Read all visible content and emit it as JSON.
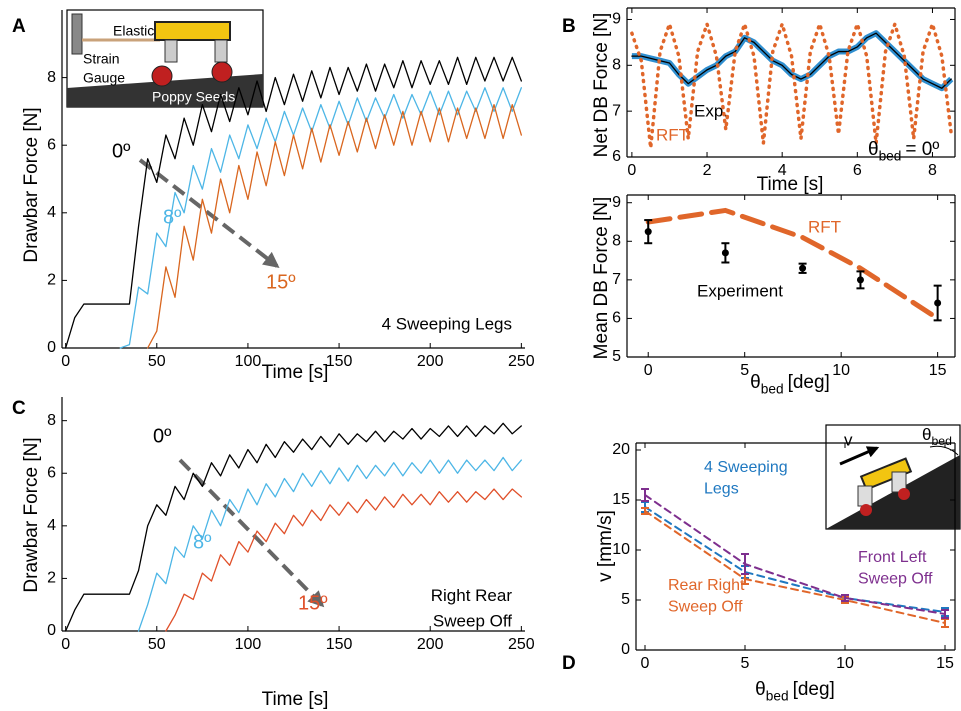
{
  "chart_data": [
    {
      "panel": "A",
      "type": "line",
      "x_label": "Time [s]",
      "y_label": "Drawbar Force [N]",
      "xlim": [
        -2,
        252
      ],
      "ylim": [
        0,
        10
      ],
      "xticks": [
        0,
        50,
        100,
        150,
        200,
        250
      ],
      "yticks": [
        0,
        2,
        4,
        6,
        8
      ],
      "x": [
        0,
        5,
        10,
        15,
        20,
        25,
        30,
        35,
        40,
        45,
        50,
        55,
        60,
        65,
        70,
        75,
        80,
        85,
        90,
        95,
        100,
        105,
        110,
        115,
        120,
        125,
        130,
        135,
        140,
        145,
        150,
        155,
        160,
        165,
        170,
        175,
        180,
        185,
        190,
        195,
        200,
        205,
        210,
        215,
        220,
        225,
        230,
        235,
        240,
        245,
        250
      ],
      "series": [
        {
          "name": "0º",
          "color": "#000000",
          "values": [
            0,
            0.9,
            1.3,
            1.3,
            1.3,
            1.3,
            1.3,
            1.3,
            3.6,
            5.6,
            4.9,
            6.3,
            5.6,
            6.8,
            6.0,
            7.2,
            6.4,
            7.5,
            6.7,
            7.7,
            6.9,
            7.9,
            7.0,
            8.0,
            7.2,
            8.1,
            7.3,
            8.2,
            7.4,
            8.3,
            7.5,
            8.3,
            7.6,
            8.4,
            7.6,
            8.4,
            7.7,
            8.5,
            7.7,
            8.5,
            7.8,
            8.5,
            7.8,
            8.6,
            7.8,
            8.6,
            7.9,
            8.6,
            7.9,
            8.6,
            7.9
          ]
        },
        {
          "name": "8º",
          "color": "#4db6e6",
          "values": [
            null,
            null,
            null,
            null,
            null,
            null,
            0,
            0.1,
            1.8,
            1.6,
            3.4,
            3.0,
            4.6,
            4.0,
            5.4,
            4.7,
            5.9,
            5.2,
            6.3,
            5.6,
            6.6,
            5.9,
            6.8,
            6.1,
            7.0,
            6.3,
            7.1,
            6.4,
            7.2,
            6.5,
            7.3,
            6.6,
            7.4,
            6.7,
            7.4,
            6.8,
            7.5,
            6.8,
            7.5,
            6.9,
            7.6,
            6.9,
            7.6,
            6.9,
            7.6,
            7.0,
            7.7,
            7.0,
            7.7,
            7.0,
            7.7
          ]
        },
        {
          "name": "15º",
          "color": "#d9661f",
          "values": [
            null,
            null,
            null,
            null,
            null,
            null,
            null,
            null,
            null,
            0,
            0.5,
            2.4,
            1.5,
            3.6,
            2.6,
            4.4,
            3.4,
            5.0,
            4.0,
            5.4,
            4.4,
            5.8,
            4.8,
            6.1,
            5.1,
            6.3,
            5.3,
            6.5,
            5.5,
            6.6,
            5.7,
            6.7,
            5.8,
            6.8,
            5.9,
            6.9,
            6.0,
            7.0,
            6.0,
            7.0,
            6.1,
            7.1,
            6.1,
            7.1,
            6.2,
            7.1,
            6.2,
            7.2,
            6.2,
            7.2,
            6.3
          ]
        }
      ],
      "annotations": [
        "4 Sweeping Legs"
      ],
      "inset_labels": [
        "Elastic",
        "Strain",
        "Gauge",
        "Poppy Seeds"
      ]
    },
    {
      "panel": "B",
      "type": "line",
      "x_label": "Time [s]",
      "y_label": "Net DB Force [N]",
      "box": true,
      "xlim": [
        -0.13,
        8.6
      ],
      "ylim": [
        6,
        9.25
      ],
      "xticks": [
        0,
        2,
        4,
        6,
        8
      ],
      "yticks": [
        6,
        7,
        8,
        9
      ],
      "x": [
        0,
        0.25,
        0.5,
        0.75,
        1,
        1.25,
        1.5,
        1.75,
        2,
        2.25,
        2.5,
        2.75,
        3,
        3.25,
        3.5,
        3.75,
        4,
        4.25,
        4.5,
        4.75,
        5,
        5.25,
        5.5,
        5.75,
        6,
        6.25,
        6.5,
        6.75,
        7,
        7.25,
        7.5,
        7.75,
        8,
        8.25,
        8.5
      ],
      "series": [
        {
          "name": "Exp.",
          "color": "#000000",
          "outline": "#2f8fd0",
          "values": [
            8.2,
            8.2,
            8.15,
            8.1,
            8.05,
            7.8,
            7.6,
            7.75,
            7.9,
            8.0,
            8.2,
            8.3,
            8.6,
            8.5,
            8.3,
            8.1,
            8.0,
            7.8,
            7.7,
            7.8,
            8.0,
            8.2,
            8.3,
            8.3,
            8.4,
            8.6,
            8.7,
            8.5,
            8.3,
            8.1,
            7.9,
            7.7,
            7.6,
            7.5,
            7.7
          ]
        },
        {
          "name": "RFT",
          "color": "#e0662a",
          "style": "dotted",
          "values": [
            8.7,
            8.1,
            6.2,
            8.3,
            8.9,
            8.2,
            6.4,
            8.3,
            8.9,
            8.2,
            6.6,
            8.3,
            8.9,
            8.2,
            6.3,
            8.3,
            8.9,
            8.2,
            6.4,
            8.3,
            8.9,
            8.2,
            6.5,
            8.3,
            8.9,
            8.2,
            6.3,
            8.3,
            8.9,
            8.2,
            6.4,
            8.3,
            8.9,
            8.2,
            6.5
          ]
        }
      ],
      "annotations": [
        {
          "symbol": "θ",
          "subscript": "bed",
          "text": "= 0º"
        }
      ]
    },
    {
      "type": "errorbar",
      "x_label": {
        "symbol": "θ",
        "subscript": "bed",
        "text": "[deg]"
      },
      "y_label": "Mean DB Force [N]",
      "box": true,
      "xlim": [
        -1.1,
        15.9
      ],
      "ylim": [
        5,
        9.2
      ],
      "xticks": [
        0,
        5,
        10,
        15
      ],
      "yticks": [
        5,
        6,
        7,
        8,
        9
      ],
      "x": [
        0,
        4,
        8,
        11,
        15
      ],
      "series": [
        {
          "name": "RFT",
          "color": "#e0662a",
          "style": "dashed",
          "values": [
            8.5,
            8.8,
            8.1,
            7.3,
            6.0
          ]
        },
        {
          "name": "Experiment",
          "color": "#000000",
          "style": "none",
          "values": [
            8.25,
            7.7,
            7.3,
            7.0,
            6.4
          ],
          "errors": [
            0.3,
            0.25,
            0.12,
            0.22,
            0.45
          ]
        }
      ]
    },
    {
      "panel": "C",
      "type": "line",
      "x_label": "Time [s]",
      "y_label": "Drawbar Force [N]",
      "xlim": [
        -2,
        252
      ],
      "ylim": [
        0,
        8.9
      ],
      "xticks": [
        0,
        50,
        100,
        150,
        200,
        250
      ],
      "yticks": [
        0,
        2,
        4,
        6,
        8
      ],
      "x": [
        0,
        5,
        10,
        15,
        20,
        25,
        30,
        35,
        40,
        45,
        50,
        55,
        60,
        65,
        70,
        75,
        80,
        85,
        90,
        95,
        100,
        105,
        110,
        115,
        120,
        125,
        130,
        135,
        140,
        145,
        150,
        155,
        160,
        165,
        170,
        175,
        180,
        185,
        190,
        195,
        200,
        205,
        210,
        215,
        220,
        225,
        230,
        235,
        240,
        245,
        250
      ],
      "series": [
        {
          "name": "0º",
          "color": "#000000",
          "values": [
            0,
            0.8,
            1.4,
            1.4,
            1.4,
            1.4,
            1.4,
            1.4,
            2.3,
            4.0,
            4.8,
            4.4,
            5.5,
            5.0,
            6.0,
            5.5,
            6.4,
            5.9,
            6.7,
            6.2,
            6.9,
            6.4,
            7.1,
            6.6,
            7.2,
            6.8,
            7.3,
            6.9,
            7.4,
            7.0,
            7.5,
            7.1,
            7.5,
            7.2,
            7.6,
            7.2,
            7.6,
            7.3,
            7.7,
            7.3,
            7.7,
            7.4,
            7.8,
            7.4,
            7.8,
            7.4,
            7.8,
            7.5,
            7.9,
            7.5,
            7.8
          ]
        },
        {
          "name": "8º",
          "color": "#4db6e6",
          "values": [
            null,
            null,
            null,
            null,
            null,
            null,
            null,
            null,
            0,
            1.0,
            2.2,
            1.8,
            3.2,
            2.8,
            4.0,
            3.5,
            4.6,
            4.0,
            5.0,
            4.5,
            5.4,
            4.8,
            5.6,
            5.1,
            5.8,
            5.3,
            6.0,
            5.5,
            6.1,
            5.6,
            6.2,
            5.7,
            6.3,
            5.8,
            6.3,
            5.9,
            6.4,
            5.9,
            6.4,
            6.0,
            6.5,
            6.0,
            6.5,
            6.0,
            6.5,
            6.1,
            6.5,
            6.1,
            6.6,
            6.1,
            6.5
          ]
        },
        {
          "name": "15º",
          "color": "#e0502a",
          "values": [
            null,
            null,
            null,
            null,
            null,
            null,
            null,
            null,
            null,
            null,
            null,
            0,
            0.6,
            1.4,
            1.2,
            2.2,
            1.9,
            2.9,
            2.5,
            3.4,
            3.0,
            3.8,
            3.4,
            4.1,
            3.7,
            4.4,
            4.0,
            4.6,
            4.2,
            4.8,
            4.4,
            4.9,
            4.5,
            5.0,
            4.6,
            5.1,
            4.7,
            5.2,
            4.8,
            5.2,
            4.8,
            5.3,
            4.9,
            5.3,
            4.9,
            5.3,
            5.0,
            5.4,
            5.0,
            5.4,
            5.1
          ]
        }
      ],
      "annotations": [
        "Right Rear Sweep Off"
      ]
    },
    {
      "panel": "D",
      "type": "errorbar",
      "x_label": {
        "symbol": "θ",
        "subscript": "bed",
        "text": "[deg]"
      },
      "y_label": "v [mm/s]",
      "box": true,
      "xlim": [
        -0.45,
        15.5
      ],
      "ylim": [
        0,
        20.7
      ],
      "xticks": [
        0,
        5,
        10,
        15
      ],
      "yticks": [
        0,
        5,
        10,
        15,
        20
      ],
      "x": [
        0,
        5,
        10,
        15
      ],
      "series": [
        {
          "name": "4 Sweeping Legs",
          "color": "#1f78c0",
          "style": "dashed",
          "values": [
            14.3,
            7.8,
            5.2,
            3.8
          ],
          "errors": [
            0.5,
            0.6,
            0.3,
            0.4
          ]
        },
        {
          "name": "Rear Right Sweep Off",
          "color": "#e0662a",
          "style": "dashed",
          "values": [
            13.9,
            7.1,
            5.0,
            2.7
          ],
          "errors": [
            0.3,
            0.5,
            0.3,
            0.4
          ]
        },
        {
          "name": "Front Left Sweep Off",
          "color": "#7e2f8e",
          "style": "dashed",
          "values": [
            15.5,
            8.6,
            5.2,
            3.6
          ],
          "errors": [
            0.6,
            1.0,
            0.3,
            0.4
          ]
        }
      ],
      "inset_labels": [
        "v",
        {
          "symbol": "θ",
          "subscript": "bed"
        }
      ]
    }
  ]
}
